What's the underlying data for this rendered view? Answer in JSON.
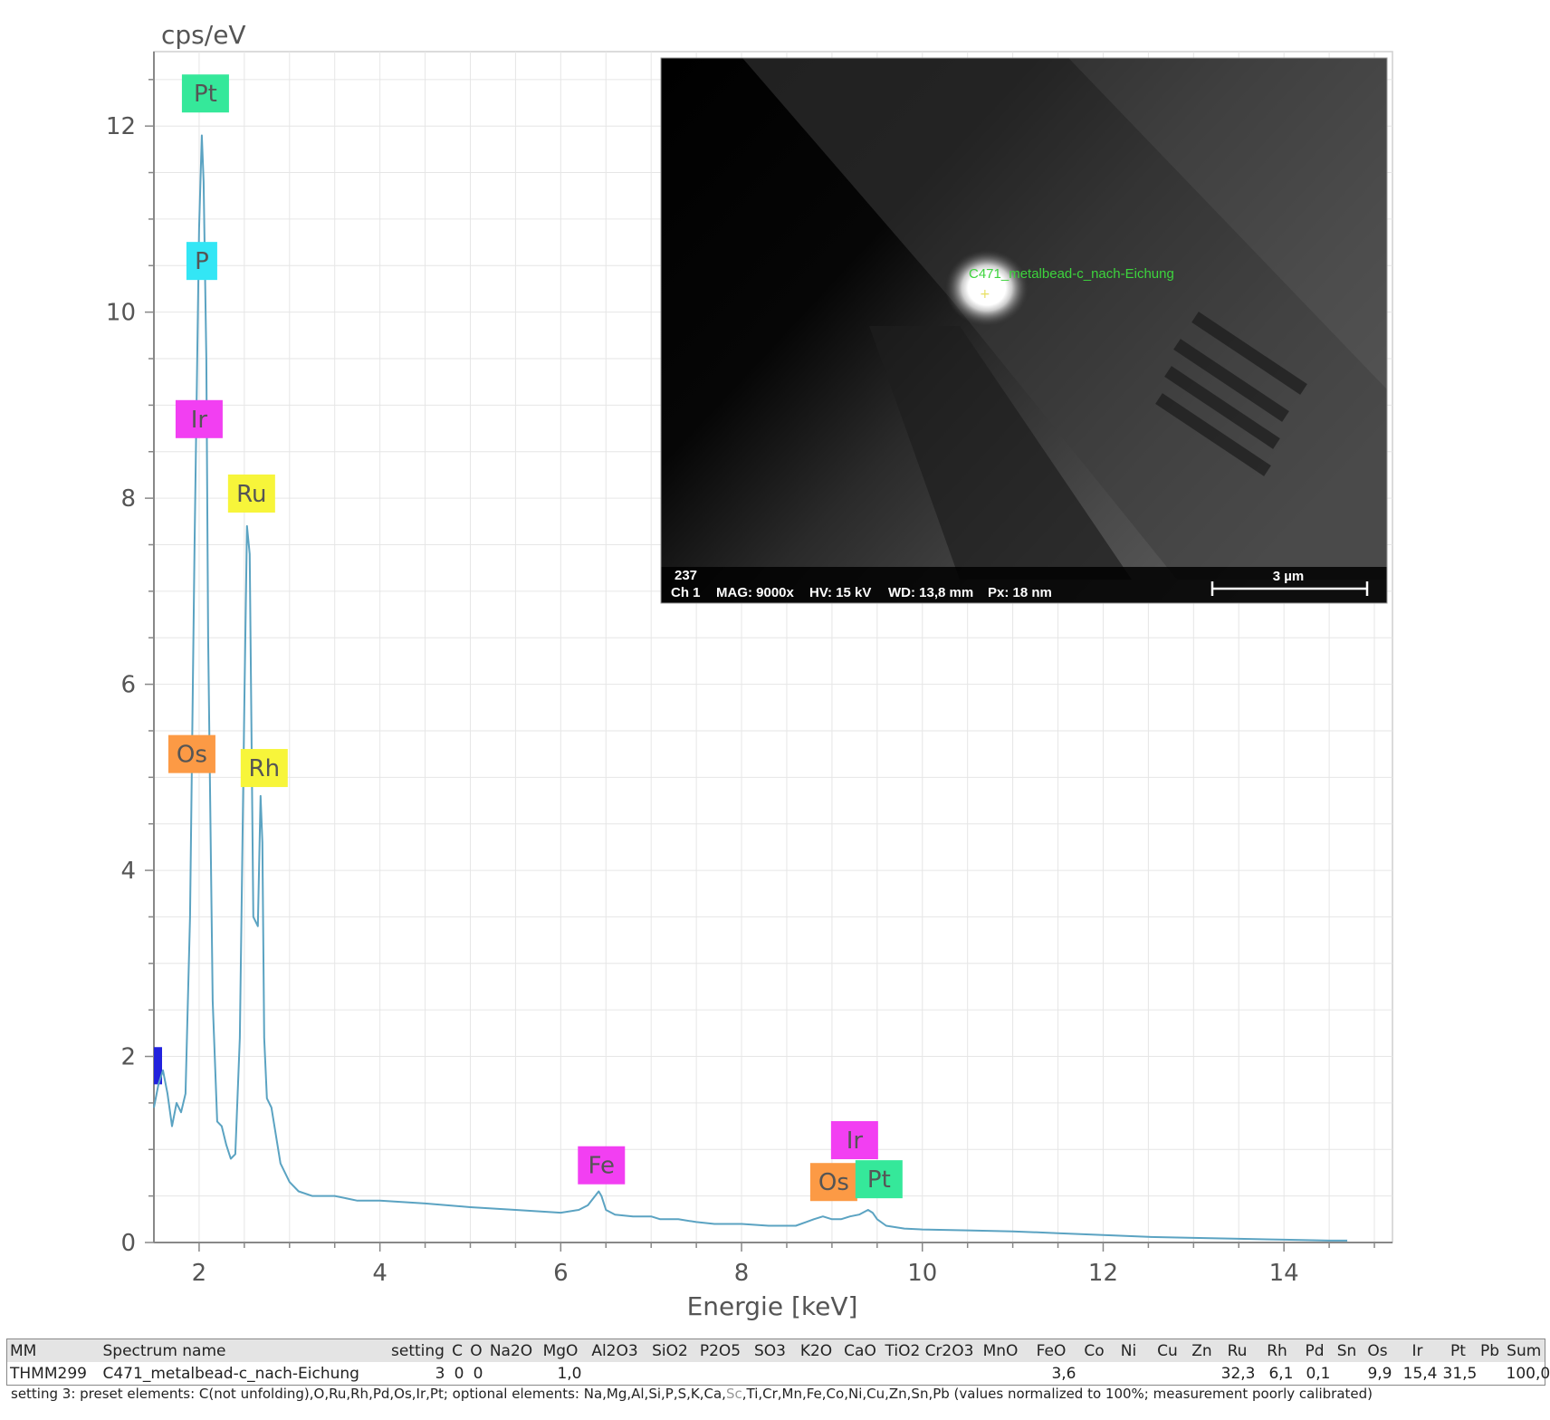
{
  "chart_data": {
    "type": "line",
    "ylabel": "cps/eV",
    "xlabel": "Energie [keV]",
    "xlim": [
      1.5,
      15.2
    ],
    "ylim": [
      0,
      12.8
    ],
    "xticks": [
      2,
      4,
      6,
      8,
      10,
      12,
      14
    ],
    "yticks": [
      0,
      2,
      4,
      6,
      8,
      10,
      12
    ],
    "grid": true,
    "series": [
      {
        "color": "#5ba3c2",
        "x": [
          1.5,
          1.55,
          1.6,
          1.65,
          1.7,
          1.75,
          1.8,
          1.85,
          1.9,
          1.95,
          2.0,
          2.03,
          2.05,
          2.08,
          2.1,
          2.15,
          2.2,
          2.25,
          2.3,
          2.35,
          2.4,
          2.45,
          2.5,
          2.53,
          2.56,
          2.6,
          2.65,
          2.68,
          2.7,
          2.72,
          2.75,
          2.8,
          2.85,
          2.9,
          3.0,
          3.1,
          3.25,
          3.5,
          3.75,
          4.0,
          4.5,
          5.0,
          5.5,
          6.0,
          6.2,
          6.3,
          6.38,
          6.42,
          6.45,
          6.5,
          6.6,
          6.8,
          7.0,
          7.1,
          7.3,
          7.5,
          7.7,
          8.0,
          8.3,
          8.6,
          8.8,
          8.9,
          9.0,
          9.1,
          9.2,
          9.3,
          9.4,
          9.45,
          9.5,
          9.6,
          9.8,
          10.0,
          10.5,
          11.0,
          11.5,
          12.0,
          12.5,
          13.0,
          13.5,
          14.0,
          14.5,
          14.7
        ],
        "y": [
          1.45,
          1.7,
          1.85,
          1.6,
          1.25,
          1.5,
          1.4,
          1.6,
          3.5,
          7.5,
          10.9,
          11.9,
          11.4,
          9.5,
          6.5,
          2.6,
          1.3,
          1.25,
          1.05,
          0.9,
          0.95,
          2.2,
          5.8,
          7.7,
          7.4,
          3.5,
          3.4,
          4.8,
          4.3,
          2.2,
          1.55,
          1.45,
          1.15,
          0.85,
          0.65,
          0.55,
          0.5,
          0.5,
          0.45,
          0.45,
          0.42,
          0.38,
          0.35,
          0.32,
          0.35,
          0.4,
          0.5,
          0.55,
          0.5,
          0.35,
          0.3,
          0.28,
          0.28,
          0.25,
          0.25,
          0.22,
          0.2,
          0.2,
          0.18,
          0.18,
          0.25,
          0.28,
          0.25,
          0.25,
          0.28,
          0.3,
          0.35,
          0.32,
          0.25,
          0.18,
          0.15,
          0.14,
          0.13,
          0.12,
          0.1,
          0.08,
          0.06,
          0.05,
          0.04,
          0.03,
          0.02,
          0.02
        ]
      }
    ],
    "peak_labels": [
      {
        "text": "Pt",
        "x": 2.07,
        "y": 12.35,
        "color": "#35e89a"
      },
      {
        "text": "P",
        "x": 2.03,
        "y": 10.55,
        "color": "#33e6f5"
      },
      {
        "text": "Ir",
        "x": 2.0,
        "y": 8.85,
        "color": "#f23ff2"
      },
      {
        "text": "Ru",
        "x": 2.58,
        "y": 8.05,
        "color": "#f7f53a"
      },
      {
        "text": "Os",
        "x": 1.92,
        "y": 5.25,
        "color": "#fc9a45"
      },
      {
        "text": "Rh",
        "x": 2.72,
        "y": 5.1,
        "color": "#f7f53a"
      },
      {
        "text": "Fe",
        "x": 6.45,
        "y": 0.83,
        "color": "#f23ff2"
      },
      {
        "text": "Ir",
        "x": 9.25,
        "y": 1.1,
        "color": "#f23ff2"
      },
      {
        "text": "Os",
        "x": 9.02,
        "y": 0.65,
        "color": "#fc9a45"
      },
      {
        "text": "Pt",
        "x": 9.52,
        "y": 0.68,
        "color": "#35e89a"
      }
    ],
    "marker_color": "#2222dd"
  },
  "inset": {
    "spot_label": "C471_metalbead-c_nach-Eichung",
    "image_number": "237",
    "channel": "Ch 1",
    "mag": "MAG: 9000x",
    "hv": "HV: 15 kV",
    "wd": "WD: 13,8 mm",
    "px": "Px: 18 nm",
    "scale_bar": "3 µm"
  },
  "table": {
    "headers": [
      "MM",
      "Spectrum name",
      "setting",
      "C",
      "O",
      "Na2O",
      "MgO",
      "Al2O3",
      "SiO2",
      "P2O5",
      "SO3",
      "K2O",
      "CaO",
      "TiO2",
      "Cr2O3",
      "MnO",
      "FeO",
      "Co",
      "Ni",
      "Cu",
      "Zn",
      "Ru",
      "Rh",
      "Pd",
      "Sn",
      "Os",
      "Ir",
      "Pt",
      "Pb",
      "Sum"
    ],
    "row": [
      "THMM299",
      "C471_metalbead-c_nach-Eichung",
      "3",
      "0",
      "0",
      "",
      "1,0",
      "",
      "",
      "",
      "",
      "",
      "",
      "",
      "",
      "",
      "3,6",
      "",
      "",
      "",
      "",
      "32,3",
      "6,1",
      "0,1",
      "",
      "9,9",
      "15,4",
      "31,5",
      "",
      "100,0"
    ]
  },
  "footnote": {
    "before": "setting 3: preset elements: C(not unfolding),O,Ru,Rh,Pd,Os,Ir,Pt; optional elements: Na,Mg,Al,Si,P,S,K,Ca,",
    "faint": "Sc",
    "after": ",Ti,Cr,Mn,Fe,Co,Ni,Cu,Zn,Sn,Pb (values normalized to 100%; measurement poorly calibrated)"
  }
}
